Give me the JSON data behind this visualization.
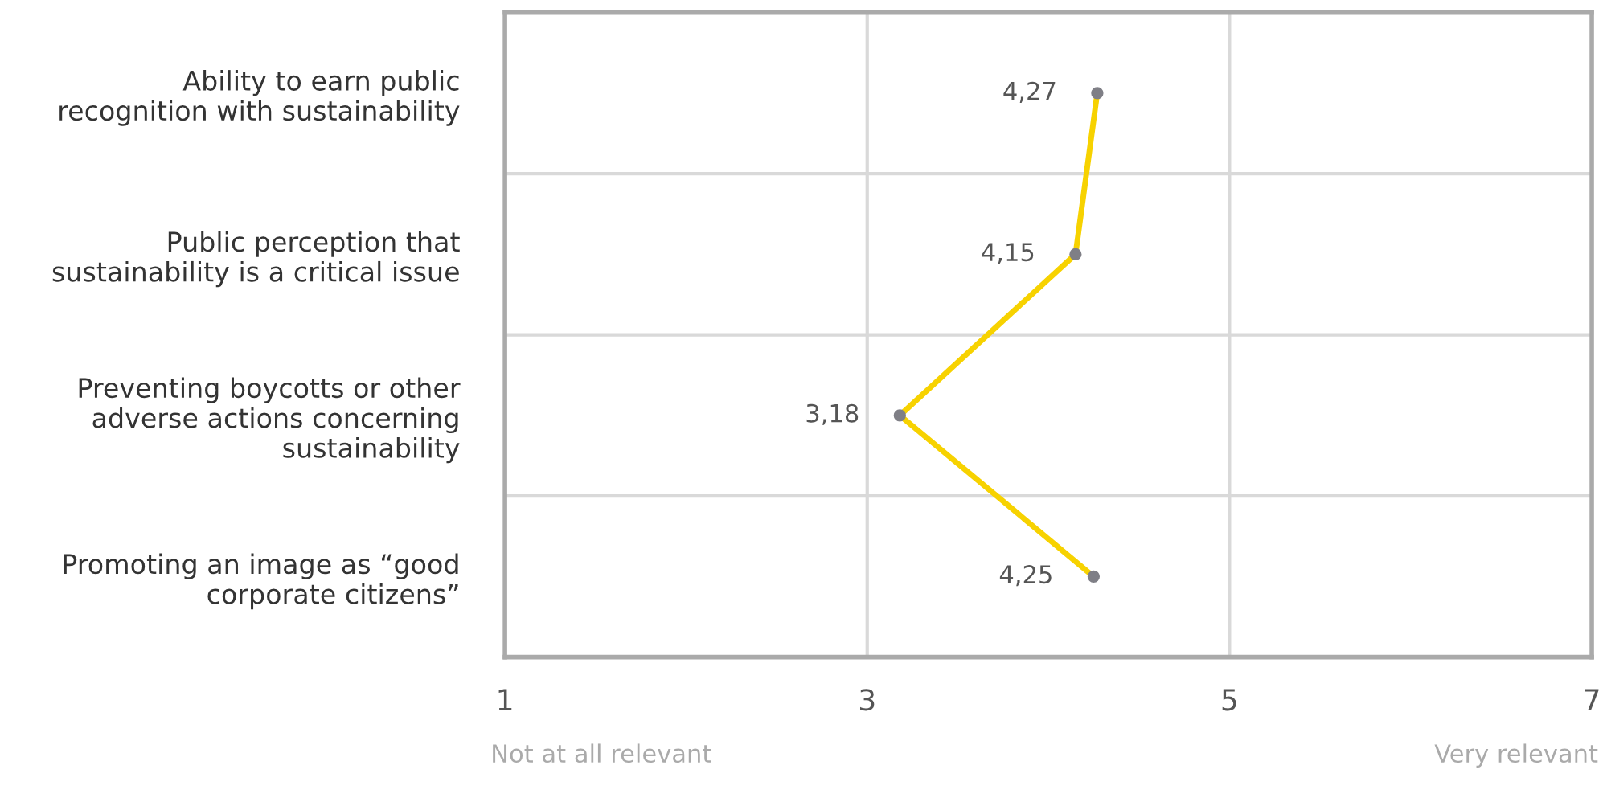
{
  "chart_data": {
    "type": "line",
    "orientation": "horizontal",
    "categories": [
      "Ability to earn public\nrecognition with sustainability",
      "Public perception that\nsustainability is a critical issue",
      "Preventing boycotts or other\nadverse actions concerning\nsustainability",
      "Promoting an image as “good\ncorporate citizens”"
    ],
    "series": [
      {
        "color": "#f7d200",
        "values": [
          4.27,
          4.15,
          3.18,
          4.25
        ],
        "value_labels": [
          "4,27",
          "4,15",
          "3,18",
          "4,25"
        ]
      }
    ],
    "xlim": [
      1,
      7
    ],
    "xticks": [
      1,
      3,
      5,
      7
    ],
    "grid": true,
    "marker": "circle",
    "line_style": "solid",
    "annotations": [
      "Not at all relevant",
      "Very relevant"
    ]
  }
}
